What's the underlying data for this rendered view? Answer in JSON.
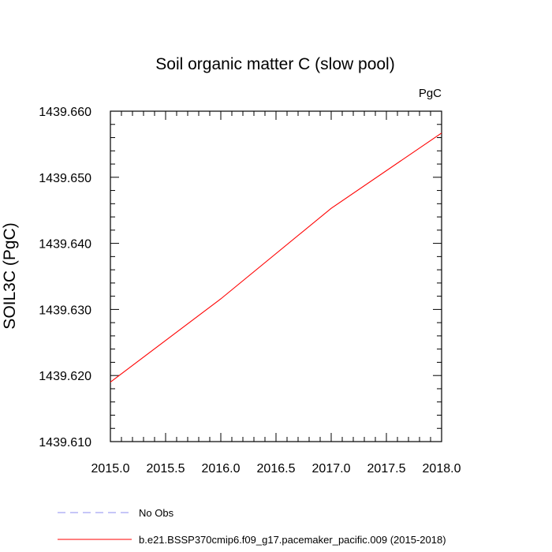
{
  "chart_data": {
    "type": "line",
    "title": "Soil organic matter C (slow pool)",
    "ylabel": "SOIL3C  (PgC)",
    "units_label": "PgC",
    "xlim": [
      2015.0,
      2018.0
    ],
    "ylim": [
      1439.61,
      1439.66
    ],
    "x_ticks": [
      "2015.0",
      "2015.5",
      "2016.0",
      "2016.5",
      "2017.0",
      "2017.5",
      "2018.0"
    ],
    "y_ticks": [
      "1439.610",
      "1439.620",
      "1439.630",
      "1439.640",
      "1439.650",
      "1439.660"
    ],
    "series": [
      {
        "name": "b.e21.BSSP370cmip6.f09_g17.pacemaker_pacific.009 (2015-2018)",
        "color": "#ff0000",
        "dash": "solid",
        "x": [
          2015.0,
          2016.0,
          2017.0,
          2018.0
        ],
        "y": [
          1439.619,
          1439.6316,
          1439.6453,
          1439.6567
        ]
      }
    ],
    "legend": [
      {
        "label": "No Obs",
        "color": "#8c8cf0",
        "dash": "dashed"
      },
      {
        "label": "b.e21.BSSP370cmip6.f09_g17.pacemaker_pacific.009 (2015-2018)",
        "color": "#ff0000",
        "dash": "solid"
      }
    ],
    "legend_position": "bottom",
    "grid": false
  }
}
